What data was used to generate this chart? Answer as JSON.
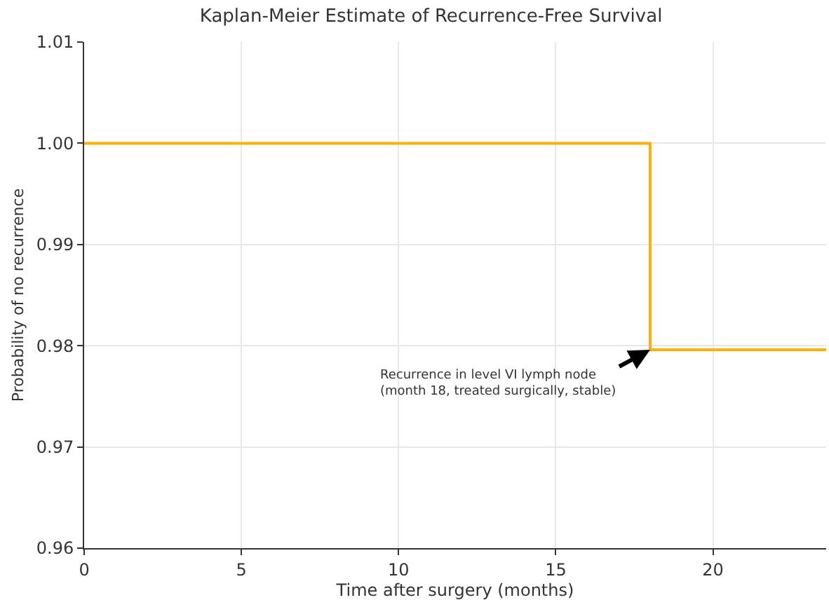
{
  "chart_data": {
    "type": "step",
    "title": "Kaplan-Meier Estimate of Recurrence-Free Survival",
    "xlabel": "Time after surgery (months)",
    "ylabel": "Probability of no recurrence",
    "x": [
      0,
      18,
      23.6
    ],
    "series": [
      {
        "color": "#ffb000",
        "values": [
          1.0,
          0.9796,
          0.9796
        ]
      }
    ],
    "xlim": [
      0,
      23.6
    ],
    "xticks": [
      0,
      5,
      10,
      15,
      20
    ],
    "ylim": [
      0.96,
      1.01
    ],
    "yticks": [
      {
        "value": 0.96,
        "label": "0.96"
      },
      {
        "value": 0.97,
        "label": "0.97"
      },
      {
        "value": 0.98,
        "label": "0.98"
      },
      {
        "value": 0.99,
        "label": "0.99"
      },
      {
        "value": 1.0,
        "label": "1.00"
      },
      {
        "value": 1.01,
        "label": "1.01"
      }
    ],
    "grid": true,
    "marker": "none",
    "line_style": "solid",
    "annotations": [
      {
        "text": "Recurrence in level VI lymph node\n(month 18, treated surgically, stable)",
        "x": 18,
        "y": 0.9796
      }
    ]
  }
}
